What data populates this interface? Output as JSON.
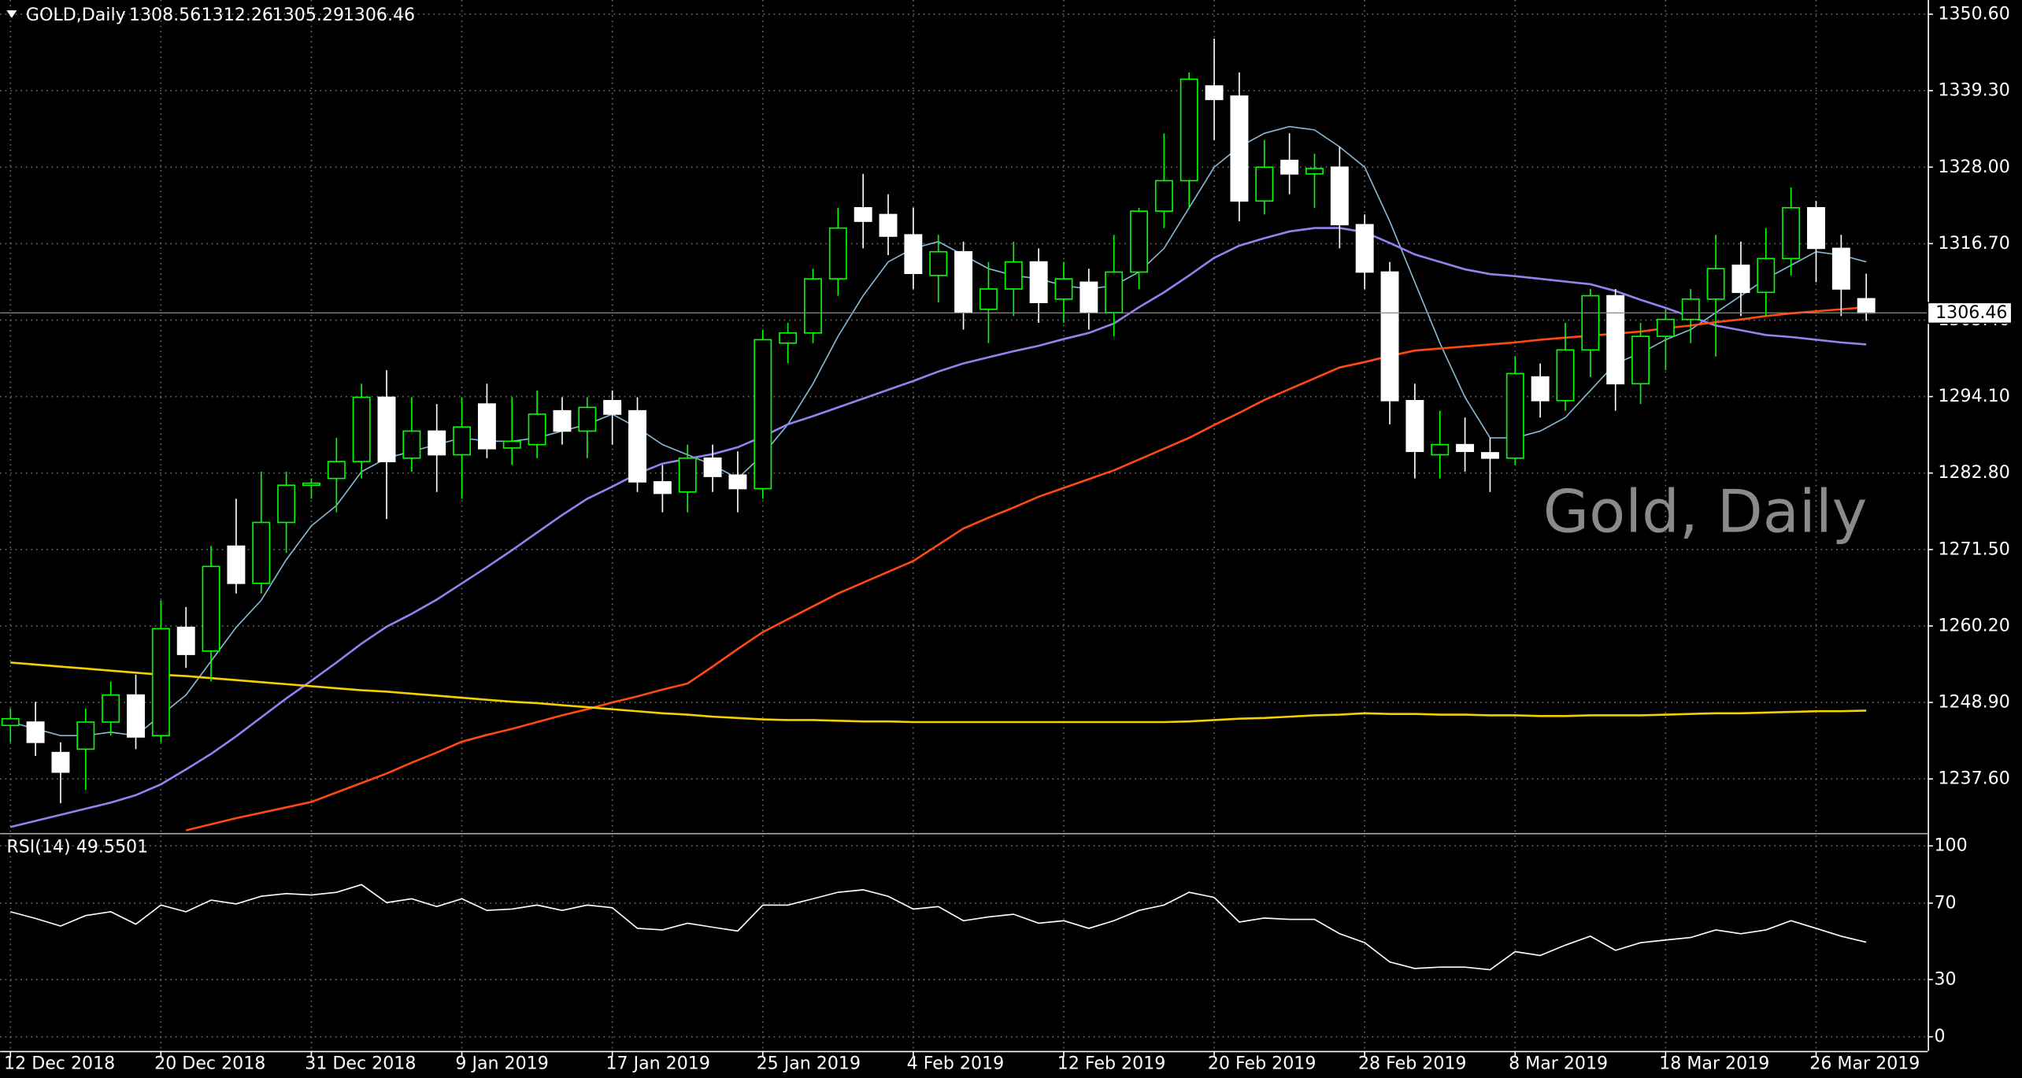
{
  "chart_data": [
    {
      "type": "candlestick",
      "title": "GOLD,Daily",
      "watermark": "Gold, Daily",
      "categories": [
        "12 Dec 2018",
        null,
        null,
        null,
        null,
        null,
        "20 Dec 2018",
        null,
        null,
        null,
        null,
        null,
        "31 Dec 2018",
        null,
        null,
        null,
        null,
        null,
        "9 Jan 2019",
        null,
        null,
        null,
        null,
        null,
        "17 Jan 2019",
        null,
        null,
        null,
        null,
        null,
        "25 Jan 2019",
        null,
        null,
        null,
        null,
        null,
        "4 Feb 2019",
        null,
        null,
        null,
        null,
        null,
        "12 Feb 2019",
        null,
        null,
        null,
        null,
        null,
        "20 Feb 2019",
        null,
        null,
        null,
        null,
        null,
        "28 Feb 2019",
        null,
        null,
        null,
        null,
        null,
        "8 Mar 2019",
        null,
        null,
        null,
        null,
        null,
        "18 Mar 2019",
        null,
        null,
        null,
        null,
        null,
        "26 Mar 2019",
        null,
        null
      ],
      "open": [
        1245.5,
        1246,
        1241.5,
        1242,
        1246,
        1250,
        1244,
        1260,
        1256.5,
        1272,
        1266.5,
        1275.5,
        1281,
        1282,
        1284.5,
        1294,
        1285,
        1289,
        1285.5,
        1293,
        1286.5,
        1287,
        1292,
        1289,
        1293.5,
        1292,
        1281.5,
        1280,
        1285,
        1282.5,
        1280.5,
        1302,
        1303.5,
        1311.5,
        1322,
        1321,
        1318,
        1312,
        1315.5,
        1307,
        1310,
        1314,
        1308.5,
        1311,
        1306.5,
        1312.5,
        1321.5,
        1326,
        1340,
        1338.5,
        1323,
        1329,
        1327,
        1328,
        1319.5,
        1312.5,
        1293.5,
        1285.5,
        1287,
        1285.8,
        1285,
        1297,
        1293.5,
        1301,
        1309,
        1296,
        1303,
        1305.5,
        1308.5,
        1313.5,
        1309.5,
        1314.5,
        1322,
        1316,
        1308.56
      ],
      "high": [
        1248,
        1249,
        1243,
        1248,
        1252,
        1253,
        1264,
        1263,
        1272,
        1279,
        1283,
        1283,
        1282,
        1288,
        1296,
        1298,
        1294,
        1293,
        1294,
        1296,
        1294,
        1295,
        1294,
        1294,
        1295,
        1294,
        1284,
        1287,
        1287,
        1286,
        1304,
        1305,
        1313,
        1322,
        1327,
        1324,
        1322,
        1318,
        1317,
        1314,
        1317,
        1316,
        1314,
        1313,
        1318,
        1322,
        1333,
        1342,
        1347,
        1342,
        1332,
        1333,
        1330,
        1331,
        1321,
        1314,
        1296,
        1292,
        1291,
        1288,
        1300,
        1299,
        1305,
        1310,
        1310,
        1305,
        1307,
        1310,
        1318,
        1317,
        1319,
        1325,
        1323,
        1318,
        1312.26
      ],
      "low": [
        1243,
        1241,
        1234,
        1236,
        1244,
        1242,
        1243,
        1254,
        1252,
        1265,
        1265,
        1271,
        1279,
        1277,
        1282,
        1276,
        1283,
        1280,
        1279,
        1285,
        1284,
        1285,
        1287,
        1285,
        1287,
        1280,
        1277,
        1277,
        1280,
        1277,
        1279,
        1299,
        1302,
        1309,
        1316,
        1315,
        1310,
        1308,
        1304,
        1302,
        1306,
        1305,
        1305,
        1304,
        1303,
        1310,
        1319,
        1322,
        1332,
        1320,
        1321,
        1324,
        1322,
        1316,
        1310,
        1290,
        1282,
        1282,
        1283,
        1280,
        1284,
        1291,
        1292,
        1297,
        1292,
        1293,
        1298,
        1302,
        1300,
        1306,
        1306,
        1312,
        1311,
        1306,
        1305.29
      ],
      "close": [
        1246.5,
        1243,
        1238.6,
        1246,
        1250,
        1243.8,
        1259.8,
        1256,
        1269,
        1266.5,
        1275.5,
        1281,
        1281.3,
        1284.5,
        1294,
        1284.5,
        1289,
        1285.5,
        1289.6,
        1286.4,
        1287.5,
        1291.5,
        1289,
        1292.5,
        1291.5,
        1281.5,
        1279.8,
        1285,
        1282.3,
        1280.5,
        1302.5,
        1303.5,
        1311.5,
        1319,
        1320,
        1317.8,
        1312.3,
        1315.5,
        1306.5,
        1310,
        1314,
        1308,
        1311.5,
        1306.5,
        1312.5,
        1321.5,
        1326,
        1341,
        1338,
        1323,
        1328,
        1327,
        1327.8,
        1319.5,
        1312.5,
        1293.5,
        1286,
        1287,
        1286,
        1285,
        1297.5,
        1293.5,
        1301,
        1309,
        1296,
        1303,
        1305.5,
        1308.5,
        1313,
        1309.5,
        1314.5,
        1322,
        1316,
        1310,
        1306.46
      ],
      "up_color": "#00ff00",
      "down_color": "#ffffff",
      "lines": [
        {
          "color": "#87b8d6",
          "values": [
            1246,
            1245,
            1244,
            1244,
            1244.5,
            1244,
            1247,
            1250,
            1255,
            1260,
            1264,
            1270,
            1275,
            1278,
            1283,
            1285,
            1286,
            1287,
            1288,
            1287.5,
            1287.5,
            1288,
            1289,
            1290,
            1291.5,
            1289.5,
            1287,
            1285.5,
            1284,
            1282,
            1285.5,
            1290,
            1296,
            1303,
            1309,
            1314,
            1316,
            1317,
            1315,
            1313,
            1312,
            1311.5,
            1310.5,
            1310,
            1310.5,
            1312.5,
            1316,
            1322,
            1328,
            1331,
            1333,
            1334,
            1333.5,
            1331,
            1328,
            1320,
            1311,
            1302,
            1294,
            1288,
            1288,
            1289,
            1291,
            1295,
            1299,
            1300.5,
            1302.5,
            1304,
            1306.5,
            1309,
            1311.5,
            1313.5,
            1315.5,
            1315,
            1314
          ]
        },
        {
          "color": "#9a7ff0",
          "values": [
            1230.5,
            1231.4,
            1232.3,
            1233.2,
            1234.1,
            1235.2,
            1236.8,
            1239.0,
            1241.3,
            1243.9,
            1246.7,
            1249.5,
            1252.1,
            1254.8,
            1257.6,
            1260.1,
            1262.0,
            1264.1,
            1266.5,
            1268.9,
            1271.4,
            1274.0,
            1276.6,
            1279.0,
            1280.8,
            1282.7,
            1284.2,
            1284.9,
            1285.6,
            1286.6,
            1288.2,
            1290.0,
            1291.2,
            1292.5,
            1293.8,
            1295.1,
            1296.4,
            1297.8,
            1299.0,
            1299.9,
            1300.8,
            1301.6,
            1302.6,
            1303.5,
            1304.9,
            1307.3,
            1309.5,
            1312.0,
            1314.6,
            1316.4,
            1317.5,
            1318.5,
            1319.0,
            1319.0,
            1318.4,
            1316.8,
            1315.1,
            1314.0,
            1312.9,
            1312.2,
            1311.9,
            1311.5,
            1311.1,
            1310.7,
            1309.7,
            1308.4,
            1307.2,
            1305.9,
            1304.6,
            1303.9,
            1303.2,
            1302.9,
            1302.5,
            1302.1,
            1301.8
          ]
        },
        {
          "color": "#ff4a10",
          "values": [
            null,
            null,
            null,
            null,
            null,
            null,
            null,
            1230.0,
            1230.9,
            1231.8,
            1232.6,
            1233.4,
            1234.2,
            1235.6,
            1237.0,
            1238.4,
            1240.0,
            1241.5,
            1243.1,
            1244.1,
            1245.0,
            1246.0,
            1247.0,
            1247.9,
            1248.9,
            1249.8,
            1250.8,
            1251.7,
            1254.2,
            1256.8,
            1259.3,
            1261.2,
            1263.1,
            1265.0,
            1266.6,
            1268.2,
            1269.8,
            1272.2,
            1274.6,
            1276.2,
            1277.7,
            1279.3,
            1280.6,
            1281.9,
            1283.2,
            1284.8,
            1286.4,
            1288.0,
            1289.9,
            1291.7,
            1293.6,
            1295.2,
            1296.8,
            1298.4,
            1299.2,
            1300.1,
            1300.9,
            1301.2,
            1301.5,
            1301.8,
            1302.1,
            1302.5,
            1302.8,
            1303.1,
            1303.4,
            1303.7,
            1304.2,
            1304.6,
            1305.1,
            1305.5,
            1306.0,
            1306.4,
            1306.7,
            1307.0,
            1307.3
          ]
        },
        {
          "color": "#f5d000",
          "values": [
            1254.8,
            1254.5,
            1254.2,
            1253.9,
            1253.6,
            1253.3,
            1253.0,
            1252.8,
            1252.5,
            1252.2,
            1251.9,
            1251.6,
            1251.3,
            1251.0,
            1250.7,
            1250.5,
            1250.2,
            1249.9,
            1249.6,
            1249.3,
            1249.0,
            1248.8,
            1248.5,
            1248.2,
            1247.9,
            1247.6,
            1247.3,
            1247.1,
            1246.8,
            1246.6,
            1246.4,
            1246.3,
            1246.3,
            1246.2,
            1246.1,
            1246.1,
            1246.0,
            1246.0,
            1246.0,
            1246.0,
            1246.0,
            1246.0,
            1246.0,
            1246.0,
            1246.0,
            1246.0,
            1246.0,
            1246.1,
            1246.3,
            1246.5,
            1246.6,
            1246.8,
            1247.0,
            1247.1,
            1247.3,
            1247.2,
            1247.2,
            1247.1,
            1247.1,
            1247.0,
            1247.0,
            1246.9,
            1246.9,
            1247.0,
            1247.0,
            1247.0,
            1247.1,
            1247.2,
            1247.3,
            1247.3,
            1247.4,
            1247.5,
            1247.6,
            1247.6,
            1247.7
          ]
        }
      ],
      "ylim": [
        1229.8,
        1352.7
      ],
      "yticks": [
        {
          "value": 1350.6,
          "label": "1350.60"
        },
        {
          "value": 1339.3,
          "label": "1339.30"
        },
        {
          "value": 1328,
          "label": "1328.00"
        },
        {
          "value": 1316.7,
          "label": "1316.70"
        },
        {
          "value": 1305.4,
          "label": "1305.40"
        },
        {
          "value": 1294.1,
          "label": "1294.10"
        },
        {
          "value": 1282.8,
          "label": "1282.80"
        },
        {
          "value": 1271.5,
          "label": "1271.50"
        },
        {
          "value": 1260.2,
          "label": "1260.20"
        },
        {
          "value": 1248.9,
          "label": "1248.90"
        },
        {
          "value": 1237.6,
          "label": "1237.60"
        }
      ],
      "grid": true
    },
    {
      "type": "line",
      "title": "RSI(14)",
      "color": "#ffffff",
      "values": [
        65.5,
        62,
        58,
        63.5,
        65.5,
        59,
        69,
        65.5,
        71.6,
        69.6,
        73.6,
        75,
        74.3,
        75.7,
        79.7,
        70.3,
        72.3,
        68.2,
        72.3,
        66.2,
        66.9,
        69,
        66.2,
        69,
        67.6,
        56.8,
        56,
        59.5,
        57.4,
        55.4,
        69,
        69,
        72.3,
        75.7,
        77,
        73.6,
        66.9,
        68.2,
        60.8,
        62.8,
        64.2,
        59.5,
        60.8,
        56.8,
        60.8,
        66.2,
        69,
        75.7,
        73,
        60.1,
        62.2,
        61.5,
        61.5,
        54,
        49.3,
        39.2,
        35.8,
        36.5,
        36.5,
        35.1,
        44.6,
        42.6,
        48,
        52.7,
        45.3,
        49.3,
        50.7,
        52,
        56,
        54,
        56,
        60.8,
        56.8,
        52.7,
        49.5501
      ],
      "ylim": [
        -7.4,
        105.4
      ],
      "yticks": [
        100,
        70,
        30,
        0
      ],
      "grid": true
    }
  ]
}
